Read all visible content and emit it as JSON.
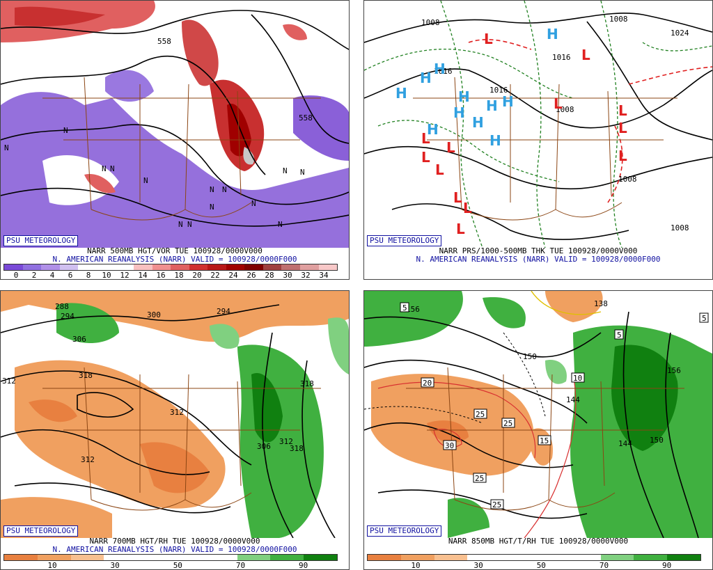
{
  "colors": {
    "credit_text": "#1010a0",
    "caption_blue": "#1010a0",
    "state_lines": "#8b4513",
    "contours": "#000000",
    "vorticity_low": "#8a60d8",
    "vorticity_high": "#c83030",
    "rh_dry": "#f0a060",
    "rh_moist": "#30a030",
    "high_symbol": "#30a0e0",
    "low_symbol": "#e02020",
    "thickness_dashed": "#208020"
  },
  "panels": [
    {
      "credit": "PSU METEOROLOGY",
      "caption_line1": "NARR 500MB HGT/VOR TUE 100928/0000V000",
      "caption_line2": "N. AMERICAN REANALYSIS (NARR) VALID = 100928/0000F000",
      "colorbar": {
        "colors": [
          "#7a4ad8",
          "#9070e0",
          "#b090e8",
          "#d0c0f0",
          "#ffffff",
          "#ffffff",
          "#ffffff",
          "#f8c0c0",
          "#f09090",
          "#e06060",
          "#d03030",
          "#b81818",
          "#a00000",
          "#800000",
          "#a04040",
          "#c07070",
          "#e0a0a0",
          "#f8c8c8"
        ],
        "ticks": [
          "0",
          "2",
          "4",
          "6",
          "8",
          "10",
          "12",
          "14",
          "16",
          "18",
          "20",
          "22",
          "24",
          "26",
          "28",
          "30",
          "32",
          "34"
        ]
      },
      "map_labels": [
        "558",
        "558",
        "N",
        "N",
        "N",
        "N",
        "N",
        "N",
        "N",
        "N",
        "N",
        "N",
        "N",
        "N",
        "N",
        "N"
      ]
    },
    {
      "credit": "PSU METEOROLOGY",
      "caption_line1": "NARR PRS/1000-500MB THK TUE 100928/0000V000",
      "caption_line2": "N. AMERICAN REANALYSIS (NARR) VALID = 100928/0000F000",
      "map_labels": [
        "1008",
        "1016",
        "1016",
        "1008",
        "1024",
        "1008",
        "1008",
        "1008",
        "1016"
      ],
      "high_symbol": "H",
      "low_symbol": "L"
    },
    {
      "credit": "PSU METEOROLOGY",
      "caption_line1": "NARR 700MB HGT/RH TUE 100928/0000V000",
      "caption_line2": "N. AMERICAN REANALYSIS (NARR) VALID = 100928/0000F000",
      "colorbar": {
        "colors": [
          "#e88040",
          "#f0a060",
          "#f8c090",
          "#ffffff",
          "#ffffff",
          "#ffffff",
          "#ffffff",
          "#80d080",
          "#40b040",
          "#108010"
        ],
        "ticks": [
          "10",
          "30",
          "50",
          "70",
          "90"
        ]
      },
      "map_labels": [
        "288",
        "294",
        "300",
        "294",
        "306",
        "312",
        "318",
        "312",
        "318",
        "312",
        "306",
        "312",
        "318"
      ]
    },
    {
      "credit": "PSU METEOROLOGY",
      "caption_line1": "NARR 850MB HGT/T/RH TUE 100928/0000V000",
      "caption_line2": "",
      "colorbar": {
        "colors": [
          "#e88040",
          "#f0a060",
          "#f8c090",
          "#ffffff",
          "#ffffff",
          "#ffffff",
          "#ffffff",
          "#80d080",
          "#40b040",
          "#108010"
        ],
        "ticks": [
          "10",
          "30",
          "50",
          "70",
          "90"
        ]
      },
      "map_labels": [
        "138",
        "150",
        "156",
        "144",
        "150",
        "144",
        "156"
      ],
      "boxed_labels": [
        "5",
        "5",
        "5",
        "20",
        "10",
        "25",
        "25",
        "30",
        "15",
        "25",
        "25"
      ]
    }
  ]
}
